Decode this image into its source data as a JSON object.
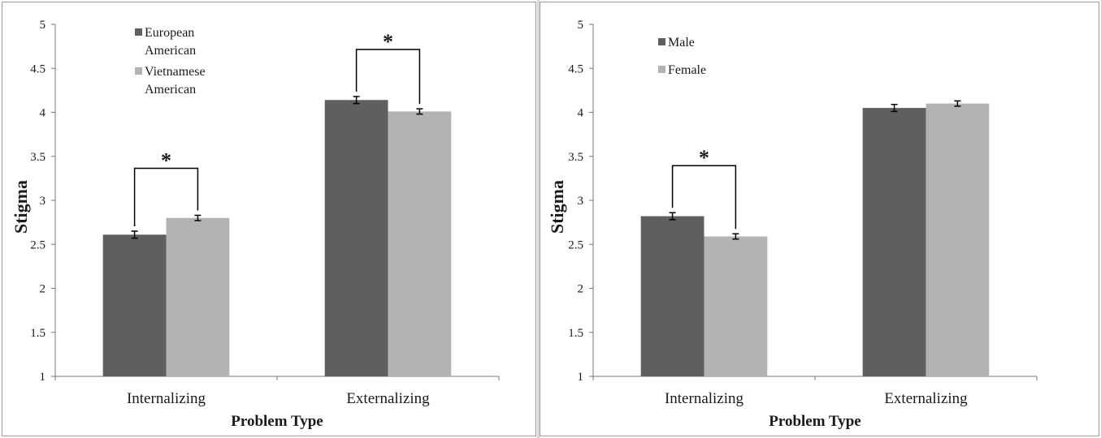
{
  "chart_data": [
    {
      "type": "bar",
      "categories": [
        "Internalizing",
        "Externalizing"
      ],
      "series": [
        {
          "name": "European American",
          "legend_lines": [
            "European",
            "American"
          ],
          "values": [
            2.61,
            4.14
          ],
          "errors": [
            0.04,
            0.04
          ],
          "color": "#5f5f5f"
        },
        {
          "name": "Vietnamese American",
          "legend_lines": [
            "Vietnamese",
            "American"
          ],
          "values": [
            2.8,
            4.01
          ],
          "errors": [
            0.03,
            0.03
          ],
          "color": "#b3b3b3"
        }
      ],
      "xlabel": "Problem Type",
      "ylabel": "Stigma",
      "ylim": [
        1,
        5
      ],
      "yticks": [
        "1",
        "1.5",
        "2",
        "2.5",
        "3",
        "3.5",
        "4",
        "4.5",
        "5"
      ],
      "legend_position": "top-left",
      "significance": [
        {
          "category": "Internalizing",
          "label": "*"
        },
        {
          "category": "Externalizing",
          "label": "*"
        }
      ]
    },
    {
      "type": "bar",
      "categories": [
        "Internalizing",
        "Externalizing"
      ],
      "series": [
        {
          "name": "Male",
          "legend_lines": [
            "Male"
          ],
          "values": [
            2.82,
            4.05
          ],
          "errors": [
            0.04,
            0.04
          ],
          "color": "#5f5f5f"
        },
        {
          "name": "Female",
          "legend_lines": [
            "Female"
          ],
          "values": [
            2.59,
            4.1
          ],
          "errors": [
            0.03,
            0.03
          ],
          "color": "#b3b3b3"
        }
      ],
      "xlabel": "Problem Type",
      "ylabel": "Stigma",
      "ylim": [
        1,
        5
      ],
      "yticks": [
        "1",
        "1.5",
        "2",
        "2.5",
        "3",
        "3.5",
        "4",
        "4.5",
        "5"
      ],
      "legend_position": "top-left",
      "significance": [
        {
          "category": "Internalizing",
          "label": "*"
        }
      ]
    }
  ]
}
